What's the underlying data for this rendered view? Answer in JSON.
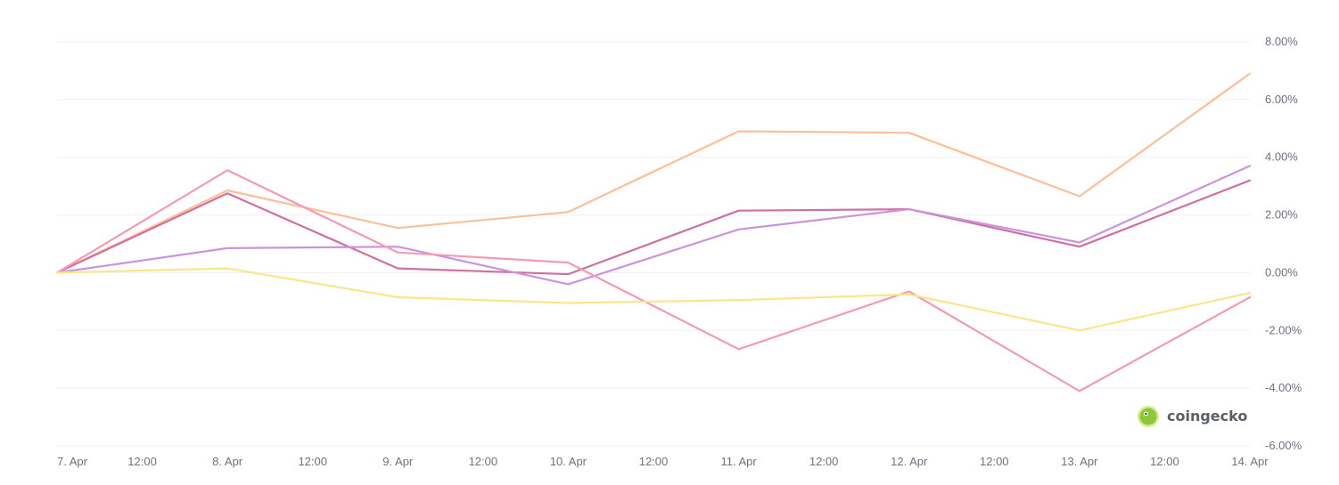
{
  "chart_data": {
    "type": "line",
    "title": "",
    "xlabel": "",
    "ylabel": "",
    "ylim": [
      -6,
      8
    ],
    "xlim": [
      "2024-04-07 00:00",
      "2024-04-14 00:00"
    ],
    "x_tick_labels": [
      "7. Apr",
      "12:00",
      "8. Apr",
      "12:00",
      "9. Apr",
      "12:00",
      "10. Apr",
      "12:00",
      "11. Apr",
      "12:00",
      "12. Apr",
      "12:00",
      "13. Apr",
      "12:00",
      "14. Apr"
    ],
    "y_tick_values": [
      8,
      6,
      4,
      2,
      0,
      -2,
      -4,
      -6
    ],
    "y_tick_labels": [
      "8.00%",
      "6.00%",
      "4.00%",
      "2.00%",
      "0.00%",
      "-2.00%",
      "-4.00%",
      "-6.00%"
    ],
    "y_axis_position": "right",
    "grid": true,
    "legend": "none",
    "x": [
      "7. Apr",
      "8. Apr",
      "9. Apr",
      "10. Apr",
      "11. Apr",
      "12. Apr",
      "13. Apr",
      "14. Apr"
    ],
    "series": [
      {
        "color": "#fbbf99",
        "values": [
          0,
          2.85,
          1.55,
          2.1,
          4.9,
          4.85,
          2.65,
          6.9
        ]
      },
      {
        "color": "#d070a0",
        "values": [
          0,
          2.75,
          0.15,
          -0.05,
          2.15,
          2.2,
          0.9,
          3.2
        ]
      },
      {
        "color": "#c994dc",
        "values": [
          0,
          0.85,
          0.9,
          -0.4,
          1.5,
          2.2,
          1.05,
          3.7
        ]
      },
      {
        "color": "#f29bb3",
        "values": [
          0,
          3.55,
          0.7,
          0.35,
          -2.65,
          -0.65,
          -4.1,
          -0.85
        ]
      },
      {
        "color": "#fbe58a",
        "values": [
          0,
          0.15,
          -0.85,
          -1.05,
          -0.95,
          -0.75,
          -2.0,
          -0.7
        ]
      }
    ]
  },
  "watermark": {
    "text": "coingecko",
    "icon": "coingecko-gecko-icon",
    "brand_color": "#8dc63f"
  }
}
